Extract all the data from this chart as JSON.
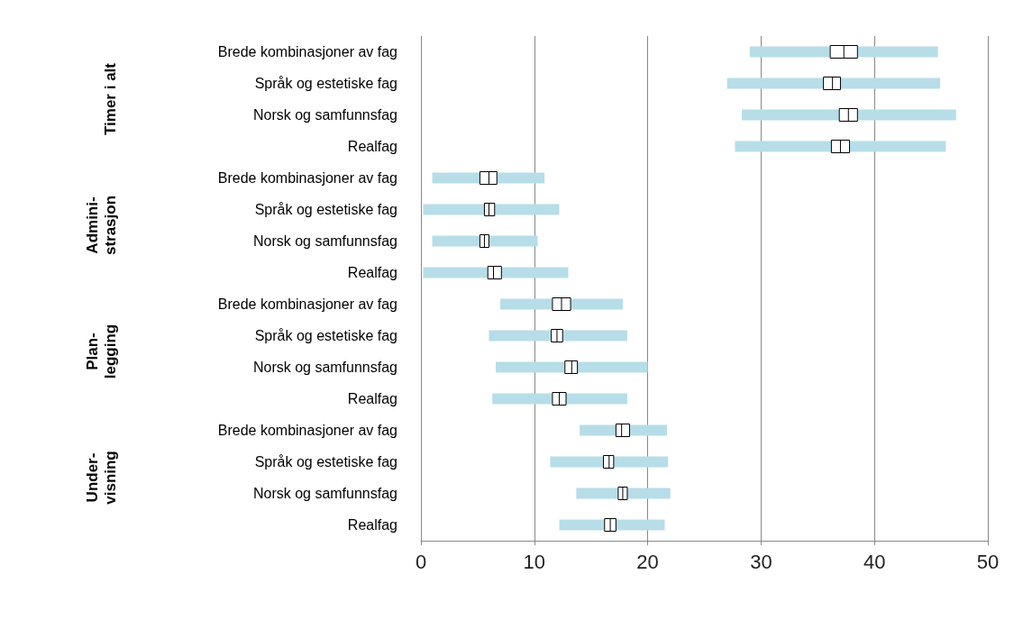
{
  "chart_data": [
    {
      "type": "box",
      "orientation": "horizontal",
      "ylabel": "Timer i alt",
      "categories": [
        "Brede kombinasjoner av fag",
        "Språk og estetiske fag",
        "Norsk og samfunnsfag",
        "Realfag"
      ],
      "color": "#ffffff",
      "xlim": [
        0,
        50
      ],
      "xticks": [
        0,
        10,
        20,
        30,
        40,
        50
      ],
      "grid": "x",
      "tick_labels": "y",
      "boxes": [
        {
          "low": 29.0,
          "q1": 36.1,
          "median": 37.3,
          "q3": 38.5,
          "high": 45.6
        },
        {
          "low": 27.0,
          "q1": 35.5,
          "median": 36.3,
          "q3": 37.0,
          "high": 45.8
        },
        {
          "low": 28.3,
          "q1": 36.9,
          "median": 37.7,
          "q3": 38.5,
          "high": 47.2
        },
        {
          "low": 27.7,
          "q1": 36.2,
          "median": 37.0,
          "q3": 37.8,
          "high": 46.3
        }
      ]
    },
    {
      "type": "box",
      "orientation": "horizontal",
      "ylabel": "Admini-\nstrasjon",
      "categories": [
        "Brede kombinasjoner av fag",
        "Språk og estetiske fag",
        "Norsk og samfunnsfag",
        "Realfag"
      ],
      "color": "#ffffff",
      "xlim": [
        0,
        50
      ],
      "xticks": [
        0,
        10,
        20,
        30,
        40,
        50
      ],
      "grid": "x",
      "tick_labels": "y",
      "boxes": [
        {
          "low": 1.0,
          "q1": 5.2,
          "median": 6.0,
          "q3": 6.7,
          "high": 10.9
        },
        {
          "low": 0.2,
          "q1": 5.6,
          "median": 6.0,
          "q3": 6.5,
          "high": 12.2
        },
        {
          "low": 1.0,
          "q1": 5.2,
          "median": 5.6,
          "q3": 6.0,
          "high": 10.3
        },
        {
          "low": 0.2,
          "q1": 5.9,
          "median": 6.4,
          "q3": 7.1,
          "high": 13.0
        }
      ]
    },
    {
      "type": "box",
      "orientation": "horizontal",
      "ylabel": "Plan-\nlegging",
      "categories": [
        "Brede kombinasjoner av fag",
        "Språk og estetiske fag",
        "Norsk og samfunnsfag",
        "Realfag"
      ],
      "color": "#ffffff",
      "xlim": [
        0,
        50
      ],
      "xticks": [
        0,
        10,
        20,
        30,
        40,
        50
      ],
      "grid": "x",
      "tick_labels": "y",
      "boxes": [
        {
          "low": 7.0,
          "q1": 11.6,
          "median": 12.4,
          "q3": 13.2,
          "high": 17.8
        },
        {
          "low": 6.0,
          "q1": 11.5,
          "median": 12.0,
          "q3": 12.5,
          "high": 18.2
        },
        {
          "low": 6.6,
          "q1": 12.7,
          "median": 13.3,
          "q3": 13.8,
          "high": 20.0
        },
        {
          "low": 6.3,
          "q1": 11.6,
          "median": 12.2,
          "q3": 12.8,
          "high": 18.2
        }
      ]
    },
    {
      "type": "box",
      "orientation": "horizontal",
      "ylabel": "Under-\nvisning",
      "categories": [
        "Brede kombinasjoner av fag",
        "Språk og estetiske fag",
        "Norsk og samfunnsfag",
        "Realfag"
      ],
      "color": "#ffffff",
      "xlim": [
        0,
        50
      ],
      "xticks": [
        0,
        10,
        20,
        30,
        40,
        50
      ],
      "grid": "x",
      "boxes": [
        {
          "low": 14.0,
          "q1": 17.2,
          "median": 17.7,
          "q3": 18.4,
          "high": 21.7
        },
        {
          "low": 11.4,
          "q1": 16.1,
          "median": 16.6,
          "q3": 17.0,
          "high": 21.8
        },
        {
          "low": 13.7,
          "q1": 17.4,
          "median": 17.8,
          "q3": 18.2,
          "high": 22.0
        },
        {
          "low": 12.2,
          "q1": 16.2,
          "median": 16.7,
          "q3": 17.2,
          "high": 21.5
        }
      ]
    }
  ]
}
